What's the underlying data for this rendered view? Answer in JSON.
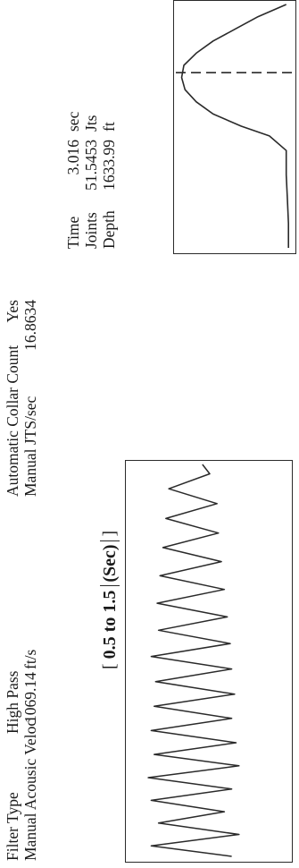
{
  "header": {
    "filter_type_label": "Filter Type",
    "filter_type_value": "High Pass",
    "manual_velocity_label": "Manual Acousic Veloc",
    "manual_velocity_value": "1069.14",
    "manual_velocity_unit": "ft/s",
    "auto_collar_label": "Automatic Collar Count",
    "auto_collar_value": "Yes",
    "manual_jts_label": "Manual JTS/sec",
    "manual_jts_value": "16.8634"
  },
  "readout": {
    "time_label": "Time",
    "time_value": "3.016",
    "time_unit": "sec",
    "joints_label": "Joints",
    "joints_value": "51.5453",
    "joints_unit": "Jts",
    "depth_label": "Depth",
    "depth_value": "1633.99",
    "depth_unit": "ft"
  },
  "chart_data": [
    {
      "type": "line",
      "title": "[ 0.5  to  1.5 (Sec) ]",
      "title_parts": {
        "open": "[",
        "from": "0.5",
        "to_word": "to",
        "to": "1.5",
        "unit": "(Sec)",
        "close": "]"
      },
      "xlim": [
        0.5,
        1.5
      ],
      "grid": false,
      "color": "#2a2a2a",
      "series": [
        {
          "x": [
            0.5,
            0.527,
            0.556,
            0.585,
            0.614,
            0.643,
            0.672,
            0.701,
            0.731,
            0.76,
            0.79,
            0.821,
            0.852,
            0.883,
            0.914,
            0.946,
            0.978,
            1.01,
            1.043,
            1.077,
            1.111,
            1.146,
            1.181,
            1.216,
            1.252,
            1.288,
            1.325,
            1.362,
            1.4,
            1.438,
            1.476,
            1.5
          ],
          "y": [
            0.35,
            0.9,
            0.3,
            0.85,
            0.4,
            0.9,
            0.35,
            0.92,
            0.3,
            0.88,
            0.32,
            0.9,
            0.35,
            0.88,
            0.33,
            0.87,
            0.35,
            0.9,
            0.36,
            0.85,
            0.38,
            0.86,
            0.4,
            0.84,
            0.42,
            0.82,
            0.44,
            0.8,
            0.45,
            0.78,
            0.5,
            0.55
          ]
        }
      ]
    },
    {
      "type": "line",
      "grid": false,
      "color": "#2a2a2a",
      "marker_style": "dashed",
      "series": [
        {
          "x": [
            0,
            0.1,
            0.2,
            0.3,
            0.4,
            0.46,
            0.5,
            0.55,
            0.6,
            0.65,
            0.7,
            0.75,
            0.8,
            0.85,
            0.9,
            0.95,
            1.0
          ],
          "y": [
            0.03,
            0.03,
            0.04,
            0.05,
            0.05,
            0.2,
            0.45,
            0.7,
            0.85,
            0.95,
            0.98,
            0.96,
            0.85,
            0.7,
            0.5,
            0.3,
            0.05
          ]
        }
      ],
      "marker_x": 0.72
    }
  ]
}
